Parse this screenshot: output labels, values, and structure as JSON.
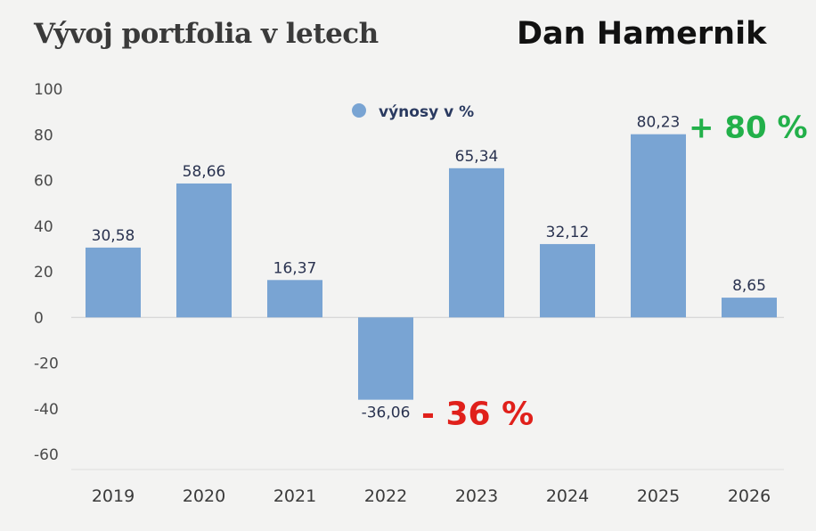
{
  "title": "Vývoj portfolia v letech",
  "author": "Dan Hamernik",
  "chart_data": {
    "type": "bar",
    "categories": [
      "2019",
      "2020",
      "2021",
      "2022",
      "2023",
      "2024",
      "2025",
      "2026"
    ],
    "series": [
      {
        "name": "výnosy v %",
        "values": [
          30.58,
          58.66,
          16.37,
          -36.06,
          65.34,
          32.12,
          80.23,
          8.65
        ]
      }
    ],
    "data_labels": [
      "30,58",
      "58,66",
      "16,37",
      "-36,06",
      "65,34",
      "32,12",
      "80,23",
      "8,65"
    ],
    "ylim": [
      -60,
      100
    ],
    "yticks": [
      100,
      80,
      60,
      40,
      20,
      0,
      -20,
      -40,
      -60
    ],
    "ytick_labels": [
      "100",
      "80",
      "60",
      "40",
      "20",
      "0",
      "-20",
      "-40",
      "-60"
    ],
    "legend_position": "top-center",
    "grid": false,
    "colors": {
      "bar": "#79a4d3",
      "positive_annotation": "#22b04a",
      "negative_annotation": "#e0201b"
    },
    "annotations": [
      {
        "text": "+ 80 %",
        "category": "2025",
        "type": "positive"
      },
      {
        "text": "- 36 %",
        "category": "2022",
        "type": "negative"
      }
    ]
  }
}
